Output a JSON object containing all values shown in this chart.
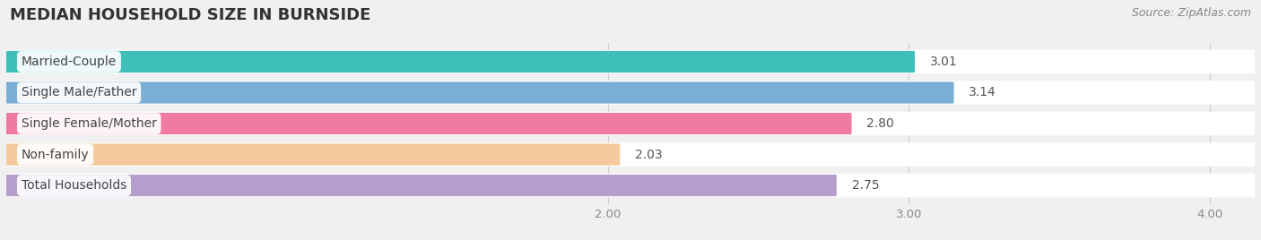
{
  "title": "MEDIAN HOUSEHOLD SIZE IN BURNSIDE",
  "source": "Source: ZipAtlas.com",
  "categories": [
    "Married-Couple",
    "Single Male/Father",
    "Single Female/Mother",
    "Non-family",
    "Total Households"
  ],
  "values": [
    3.01,
    3.14,
    2.8,
    2.03,
    2.75
  ],
  "bar_colors": [
    "#3ebfb8",
    "#7aaed4",
    "#f07aa0",
    "#f5c99a",
    "#b59dcc"
  ],
  "xlim_min": 0.0,
  "xlim_max": 4.15,
  "xticks": [
    2.0,
    3.0,
    4.0
  ],
  "background_color": "#f0f0f0",
  "row_bg_color": "#ffffff",
  "title_fontsize": 13,
  "value_label_fontsize": 10,
  "source_fontsize": 9,
  "category_fontsize": 10
}
